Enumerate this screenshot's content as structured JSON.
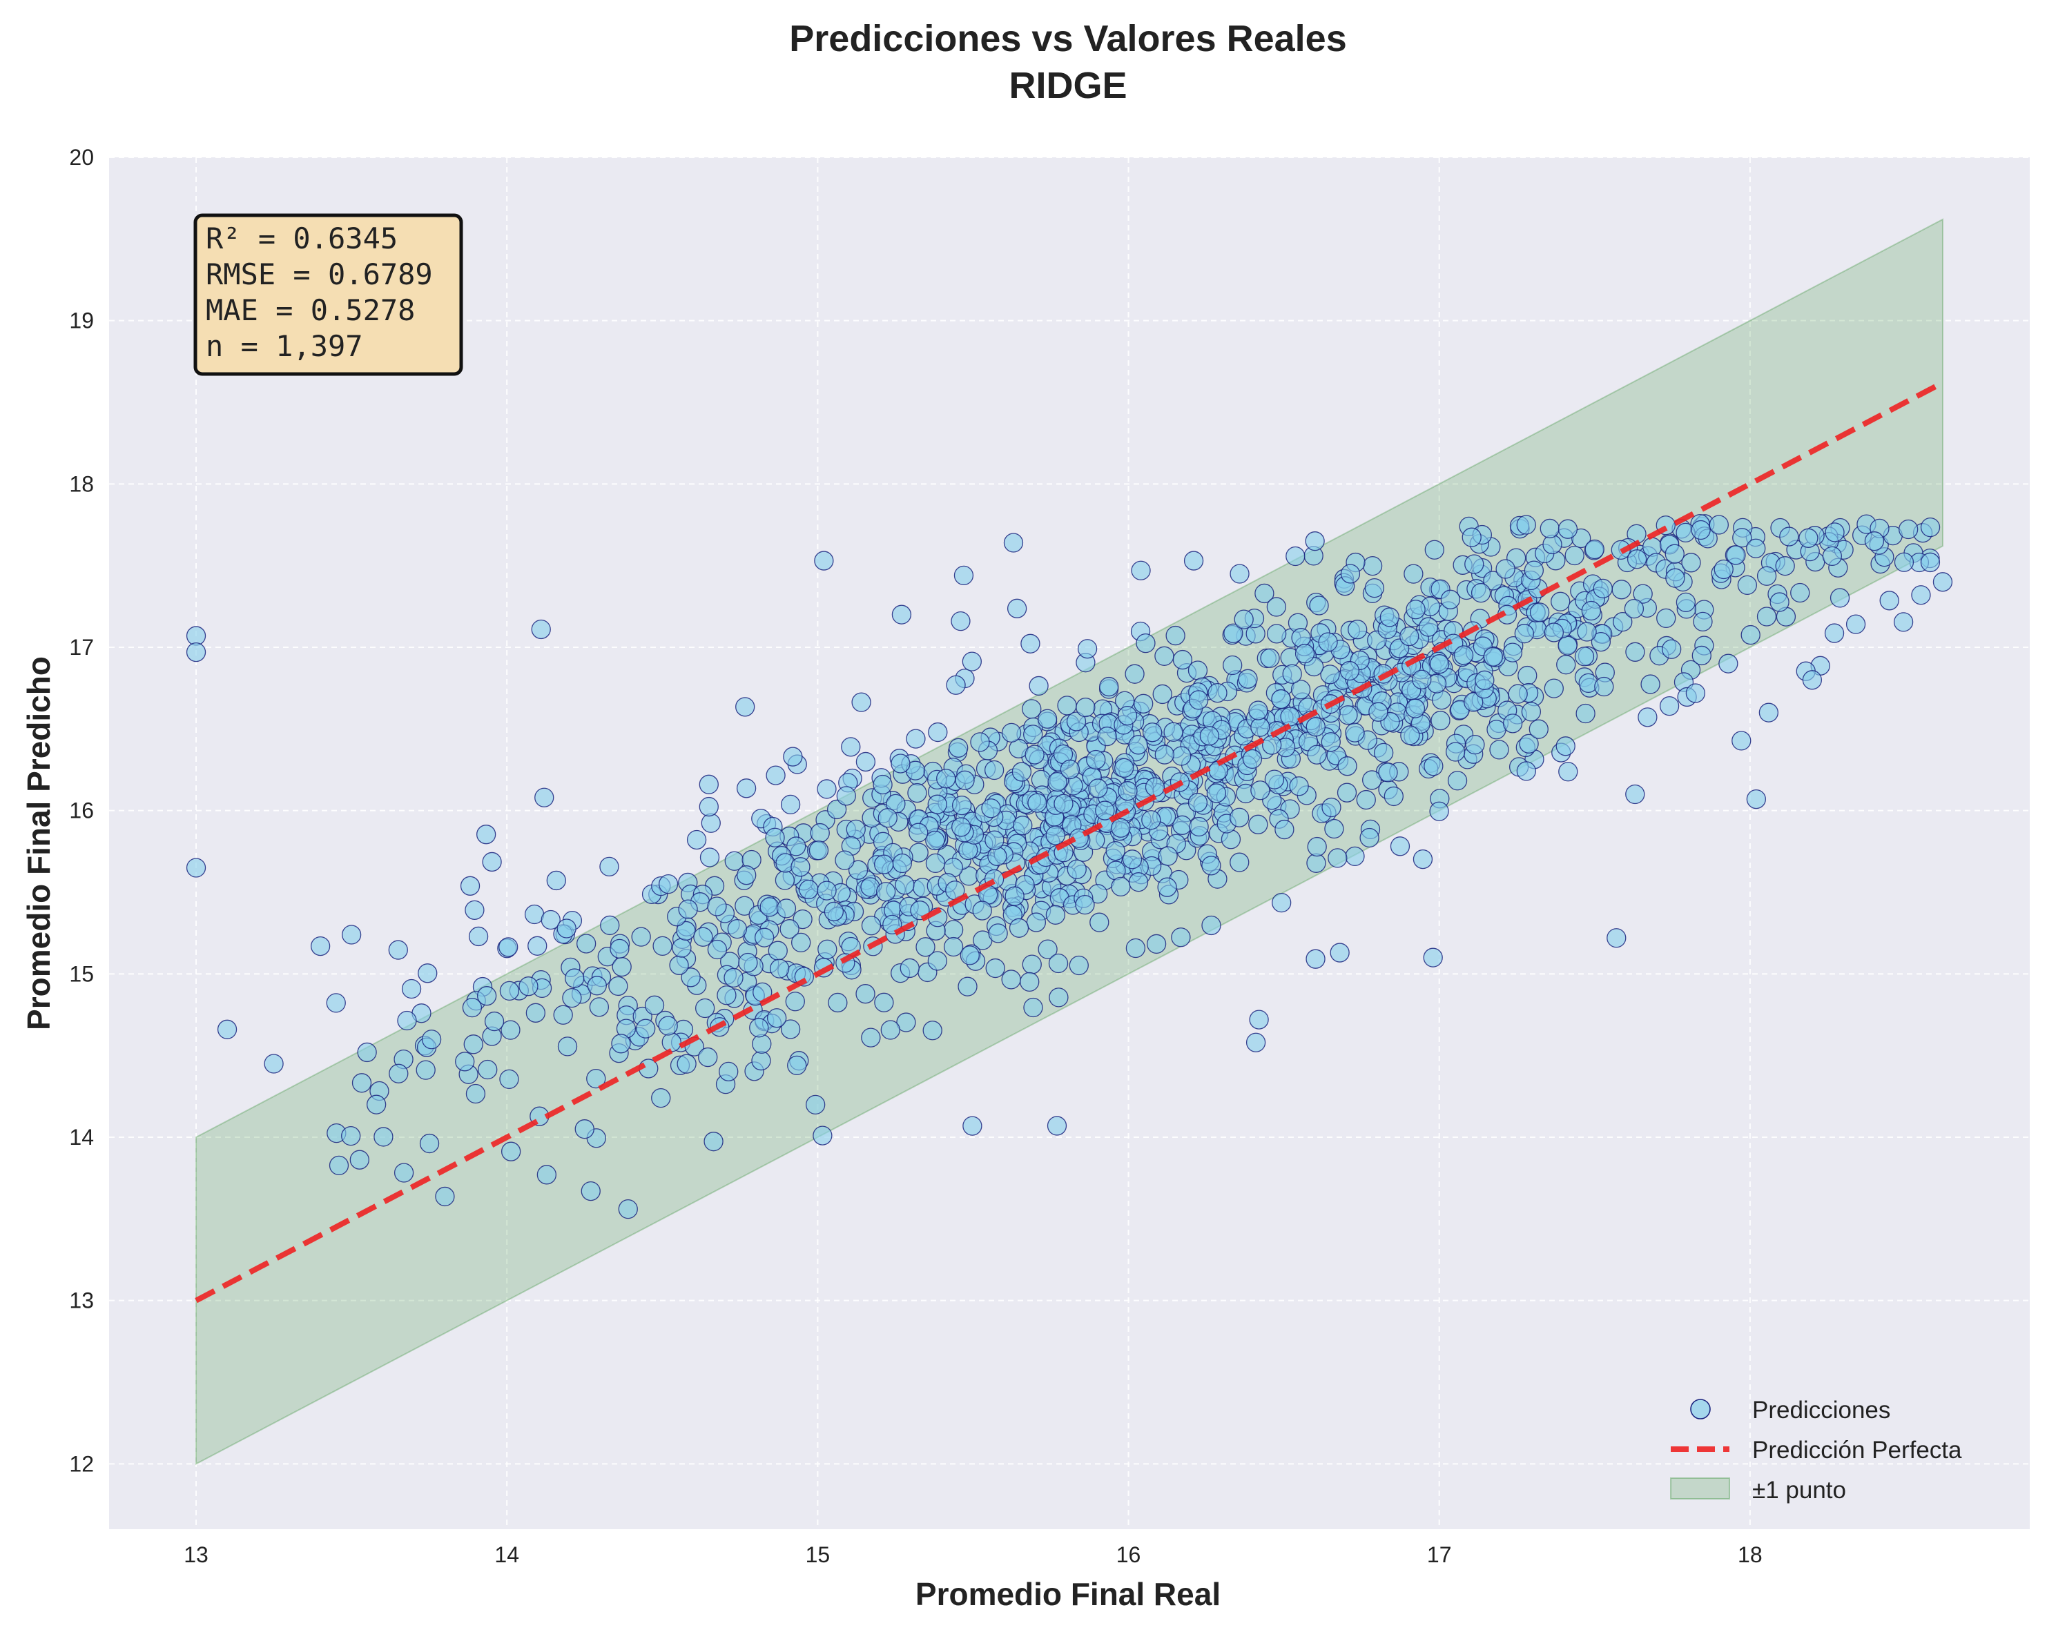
{
  "chart_data": {
    "type": "scatter",
    "title": "Predicciones vs Valores Reales",
    "subtitle": "RIDGE",
    "xlabel": "Promedio Final Real",
    "ylabel": "Promedio Final Predicho",
    "xlim": [
      12.72,
      18.9
    ],
    "ylim": [
      11.6,
      20.0
    ],
    "x_ticks": [
      13,
      14,
      15,
      16,
      17,
      18
    ],
    "y_ticks": [
      12,
      13,
      14,
      15,
      16,
      17,
      18,
      19,
      20
    ],
    "grid": true,
    "legend_position": "bottom-right",
    "stats": {
      "r2": "R² = 0.6345",
      "rmse": "RMSE = 0.6789",
      "mae": "MAE = 0.5278",
      "n": "n = 1,397"
    },
    "series": [
      {
        "name": "Predicciones",
        "kind": "scatter",
        "n_points": 1397,
        "approx_fit": {
          "intercept": 4.6,
          "slope": 0.72,
          "x_range": [
            13.0,
            18.62
          ]
        },
        "sample_points": [
          {
            "x": 13.0,
            "y": 17.07
          },
          {
            "x": 13.0,
            "y": 16.97
          },
          {
            "x": 13.0,
            "y": 15.65
          },
          {
            "x": 13.1,
            "y": 14.66
          },
          {
            "x": 13.25,
            "y": 14.45
          },
          {
            "x": 13.4,
            "y": 15.17
          },
          {
            "x": 13.5,
            "y": 15.24
          },
          {
            "x": 13.55,
            "y": 14.52
          },
          {
            "x": 13.58,
            "y": 14.2
          },
          {
            "x": 14.11,
            "y": 17.11
          },
          {
            "x": 14.12,
            "y": 16.08
          },
          {
            "x": 14.27,
            "y": 13.67
          },
          {
            "x": 14.39,
            "y": 13.56
          },
          {
            "x": 14.25,
            "y": 14.05
          },
          {
            "x": 15.02,
            "y": 17.53
          },
          {
            "x": 15.27,
            "y": 17.2
          },
          {
            "x": 15.47,
            "y": 17.44
          },
          {
            "x": 15.46,
            "y": 17.16
          },
          {
            "x": 15.63,
            "y": 17.64
          },
          {
            "x": 15.77,
            "y": 14.07
          },
          {
            "x": 14.92,
            "y": 16.33
          },
          {
            "x": 14.65,
            "y": 16.16
          },
          {
            "x": 16.21,
            "y": 17.53
          },
          {
            "x": 16.04,
            "y": 17.47
          },
          {
            "x": 16.6,
            "y": 17.65
          },
          {
            "x": 16.42,
            "y": 14.72
          },
          {
            "x": 16.41,
            "y": 14.58
          },
          {
            "x": 16.68,
            "y": 15.13
          },
          {
            "x": 16.98,
            "y": 15.1
          },
          {
            "x": 17.57,
            "y": 15.22
          },
          {
            "x": 18.02,
            "y": 16.07
          },
          {
            "x": 18.06,
            "y": 16.6
          },
          {
            "x": 18.2,
            "y": 16.8
          },
          {
            "x": 18.4,
            "y": 17.65
          },
          {
            "x": 18.55,
            "y": 17.32
          },
          {
            "x": 18.58,
            "y": 17.52
          },
          {
            "x": 18.62,
            "y": 17.4
          },
          {
            "x": 17.93,
            "y": 16.9
          },
          {
            "x": 17.5,
            "y": 17.6
          },
          {
            "x": 17.9,
            "y": 17.75
          },
          {
            "x": 17.28,
            "y": 17.75
          },
          {
            "x": 17.63,
            "y": 16.1
          }
        ]
      },
      {
        "name": "Predicción Perfecta",
        "kind": "line",
        "x": [
          13.0,
          18.62
        ],
        "y": [
          13.0,
          18.62
        ]
      },
      {
        "name": "±1 punto",
        "kind": "band",
        "x": [
          13.0,
          18.62
        ],
        "lower": [
          12.0,
          17.62
        ],
        "upper": [
          14.0,
          19.62
        ]
      }
    ],
    "colors": {
      "plot_background": "#eaeaf2",
      "grid": "#ffffff",
      "points_fill": "#87ceeb",
      "points_edge": "#1a237e",
      "line": "#ee2222",
      "band": "#2e8b2e",
      "stats_box_fill": "#f5deb3",
      "stats_box_edge": "#111111"
    }
  }
}
